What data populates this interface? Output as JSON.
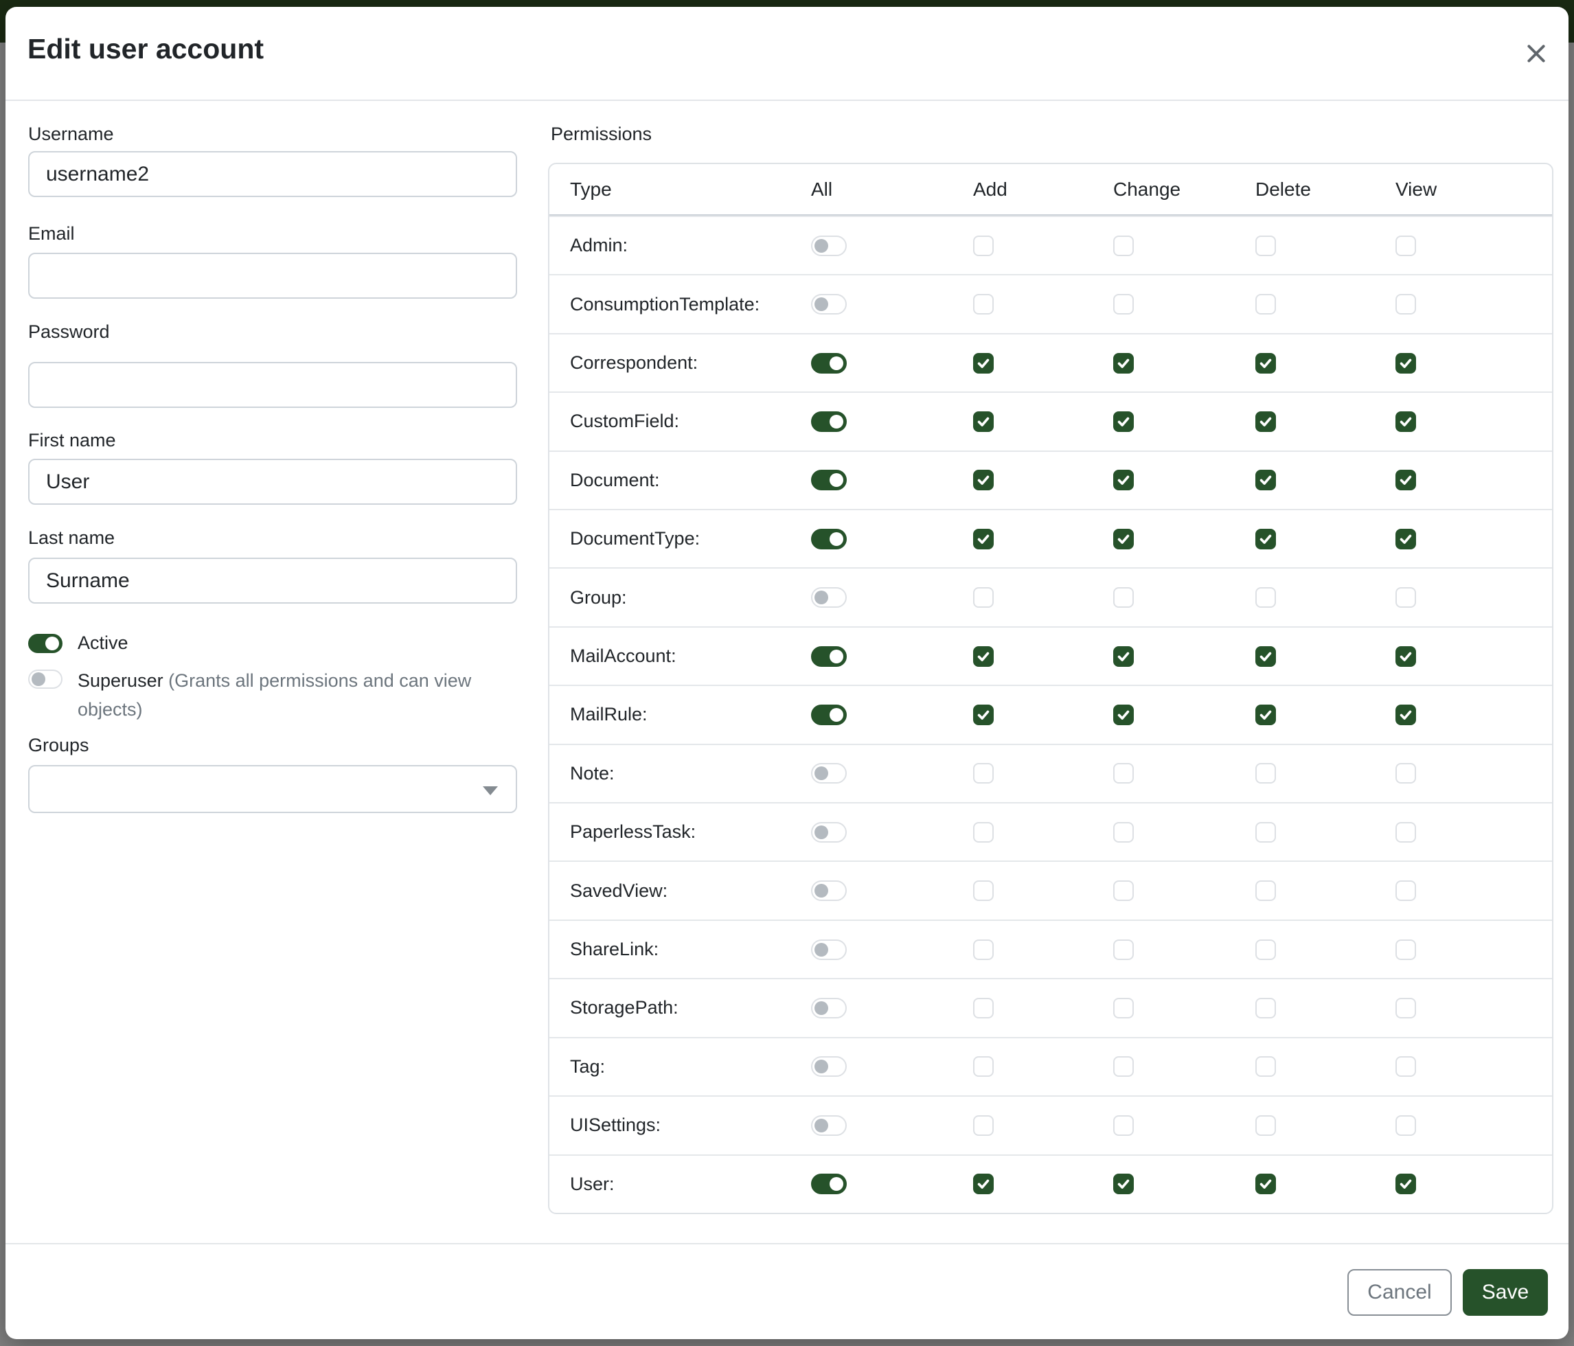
{
  "modal": {
    "title": "Edit user account"
  },
  "colors": {
    "accent_green": "#26522a",
    "topbar_green": "#1a2a13",
    "backdrop_gray": "#828282"
  },
  "form": {
    "username": {
      "label": "Username",
      "value": "username2"
    },
    "email": {
      "label": "Email",
      "value": ""
    },
    "password": {
      "label": "Password",
      "value": ""
    },
    "first_name": {
      "label": "First name",
      "value": "User"
    },
    "last_name": {
      "label": "Last name",
      "value": "Surname"
    },
    "active": {
      "label": "Active",
      "enabled": true
    },
    "superuser": {
      "label": "Superuser",
      "note": "(Grants all permissions and can view objects)",
      "enabled": false
    },
    "groups": {
      "label": "Groups",
      "value": ""
    }
  },
  "permissions": {
    "label": "Permissions",
    "columns": [
      "Type",
      "All",
      "Add",
      "Change",
      "Delete",
      "View"
    ],
    "rows": [
      {
        "type": "Admin:",
        "all": false,
        "add": false,
        "change": false,
        "delete": false,
        "view": false
      },
      {
        "type": "ConsumptionTemplate:",
        "all": false,
        "add": false,
        "change": false,
        "delete": false,
        "view": false
      },
      {
        "type": "Correspondent:",
        "all": true,
        "add": true,
        "change": true,
        "delete": true,
        "view": true
      },
      {
        "type": "CustomField:",
        "all": true,
        "add": true,
        "change": true,
        "delete": true,
        "view": true
      },
      {
        "type": "Document:",
        "all": true,
        "add": true,
        "change": true,
        "delete": true,
        "view": true
      },
      {
        "type": "DocumentType:",
        "all": true,
        "add": true,
        "change": true,
        "delete": true,
        "view": true
      },
      {
        "type": "Group:",
        "all": false,
        "add": false,
        "change": false,
        "delete": false,
        "view": false
      },
      {
        "type": "MailAccount:",
        "all": true,
        "add": true,
        "change": true,
        "delete": true,
        "view": true
      },
      {
        "type": "MailRule:",
        "all": true,
        "add": true,
        "change": true,
        "delete": true,
        "view": true
      },
      {
        "type": "Note:",
        "all": false,
        "add": false,
        "change": false,
        "delete": false,
        "view": false
      },
      {
        "type": "PaperlessTask:",
        "all": false,
        "add": false,
        "change": false,
        "delete": false,
        "view": false
      },
      {
        "type": "SavedView:",
        "all": false,
        "add": false,
        "change": false,
        "delete": false,
        "view": false
      },
      {
        "type": "ShareLink:",
        "all": false,
        "add": false,
        "change": false,
        "delete": false,
        "view": false
      },
      {
        "type": "StoragePath:",
        "all": false,
        "add": false,
        "change": false,
        "delete": false,
        "view": false
      },
      {
        "type": "Tag:",
        "all": false,
        "add": false,
        "change": false,
        "delete": false,
        "view": false
      },
      {
        "type": "UISettings:",
        "all": false,
        "add": false,
        "change": false,
        "delete": false,
        "view": false
      },
      {
        "type": "User:",
        "all": true,
        "add": true,
        "change": true,
        "delete": true,
        "view": true
      }
    ]
  },
  "footer": {
    "cancel_label": "Cancel",
    "save_label": "Save"
  }
}
